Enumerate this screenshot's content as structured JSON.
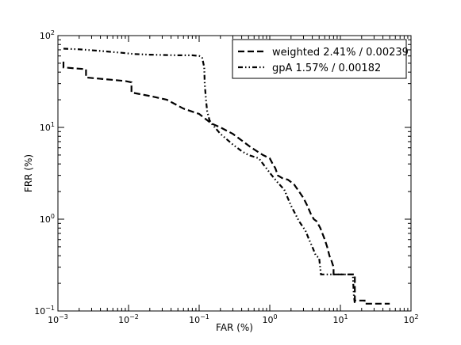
{
  "chart_data": {
    "type": "line",
    "title": "",
    "xlabel": "FAR (%)",
    "ylabel": "FRR (%)",
    "xscale": "log",
    "yscale": "log",
    "xlim": [
      0.001,
      100
    ],
    "ylim": [
      0.1,
      100
    ],
    "grid": false,
    "legend_position": "top-right",
    "x_ticks": [
      {
        "base": "10",
        "exp": "−3"
      },
      {
        "base": "10",
        "exp": "−2"
      },
      {
        "base": "10",
        "exp": "−1"
      },
      {
        "base": "10",
        "exp": "0"
      },
      {
        "base": "10",
        "exp": "1"
      },
      {
        "base": "10",
        "exp": "2"
      }
    ],
    "y_ticks": [
      {
        "base": "10",
        "exp": "−1"
      },
      {
        "base": "10",
        "exp": "0"
      },
      {
        "base": "10",
        "exp": "1"
      },
      {
        "base": "10",
        "exp": "2"
      }
    ],
    "series": [
      {
        "name": "weighted 2.41% / 0.00239",
        "style": "dashed",
        "color": "#000000",
        "x": [
          0.0012,
          0.0012,
          0.0025,
          0.0025,
          0.009,
          0.011,
          0.011,
          0.02,
          0.035,
          0.06,
          0.1,
          0.15,
          0.2,
          0.3,
          0.4,
          0.55,
          0.8,
          1.0,
          1.1,
          1.2,
          1.3,
          1.5,
          1.8,
          2.2,
          2.6,
          3.0,
          3.4,
          3.8,
          4.2,
          4.6,
          5.2,
          6.0,
          6.5,
          7.0,
          7.5,
          8.0,
          8.0,
          16,
          16,
          22,
          22,
          50
        ],
        "y": [
          52,
          45,
          43,
          35,
          32,
          31,
          24,
          22,
          20,
          16,
          14,
          11,
          10,
          8.5,
          7.2,
          6.0,
          5.0,
          4.6,
          4.0,
          3.6,
          3.0,
          2.8,
          2.7,
          2.4,
          2.0,
          1.7,
          1.4,
          1.15,
          1.0,
          0.95,
          0.8,
          0.6,
          0.5,
          0.4,
          0.35,
          0.3,
          0.25,
          0.25,
          0.13,
          0.13,
          0.12,
          0.12
        ]
      },
      {
        "name": "gpA 1.57% / 0.00182",
        "style": "dash-dot-dot",
        "color": "#000000",
        "x": [
          0.0012,
          0.002,
          0.004,
          0.008,
          0.012,
          0.02,
          0.05,
          0.08,
          0.1,
          0.11,
          0.118,
          0.12,
          0.125,
          0.13,
          0.14,
          0.15,
          0.2,
          0.3,
          0.4,
          0.5,
          0.7,
          1.0,
          1.3,
          1.6,
          2.0,
          2.6,
          3.2,
          3.6,
          4.0,
          4.5,
          5.0,
          5.3,
          6.0,
          8.0,
          12,
          15,
          15.5,
          16
        ],
        "y": [
          72,
          71,
          68,
          65,
          63,
          62,
          61,
          61,
          60,
          58,
          45,
          30,
          20,
          15,
          12,
          11,
          8.5,
          6.5,
          5.5,
          5.0,
          4.6,
          3.2,
          2.5,
          2.1,
          1.4,
          0.95,
          0.75,
          0.6,
          0.5,
          0.4,
          0.38,
          0.25,
          0.25,
          0.25,
          0.25,
          0.25,
          0.15,
          0.12
        ]
      }
    ]
  }
}
